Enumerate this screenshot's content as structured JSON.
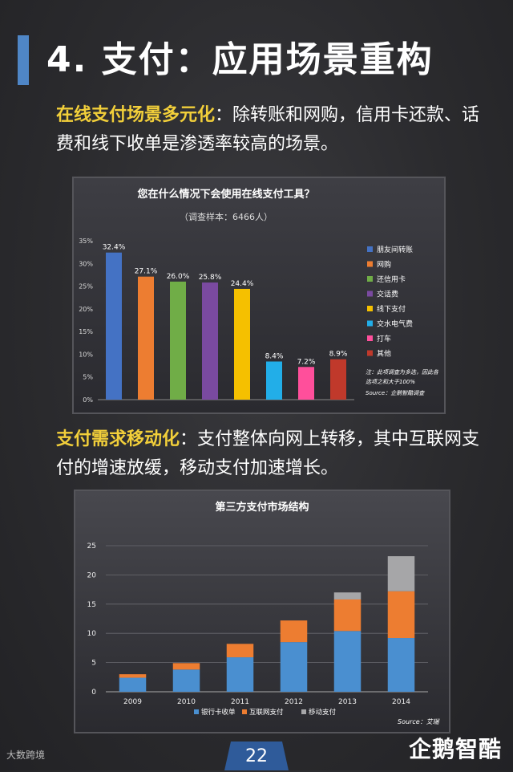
{
  "page": {
    "title": "4. 支付：应用场景重构",
    "para1_highlight": "在线支付场景多元化",
    "para1_text": "：除转账和网购，信用卡还款、话费和线下收单是渗透率较高的场景。",
    "para2_highlight": "支付需求移动化",
    "para2_text": "：支付整体向网上转移，其中互联网支付的增速放缓，移动支付加速增长。",
    "bottom_left": "大数跨境",
    "page_number": "22",
    "brand": "企鹅智酷"
  },
  "chart_data": [
    {
      "type": "bar",
      "title": "您在什么情况下会使用在线支付工具？",
      "subtitle": "（调查样本：6466人）",
      "categories": [
        "朋友间转账",
        "网购",
        "还信用卡",
        "交话费",
        "线下支付",
        "交水电气费",
        "打车",
        "其他"
      ],
      "values": [
        32.4,
        27.1,
        26.0,
        25.8,
        24.4,
        8.4,
        7.2,
        8.9
      ],
      "value_labels": [
        "32.4%",
        "27.1%",
        "26.0%",
        "25.8%",
        "24.4%",
        "8.4%",
        "7.2%",
        "8.9%"
      ],
      "colors": [
        "#4472c4",
        "#ed7d31",
        "#70ad47",
        "#7a4aa0",
        "#f5c000",
        "#22aee8",
        "#ff4f9b",
        "#c0392b"
      ],
      "ylim": [
        0,
        35
      ],
      "yticks": [
        "0%",
        "5%",
        "10%",
        "15%",
        "20%",
        "25%",
        "30%",
        "35%"
      ],
      "legend": "right",
      "note": "注：此项调查为多选，因此各选项之和大于100%",
      "source": "Source：企鹅智酷调查"
    },
    {
      "type": "bar",
      "stacked": true,
      "title": "第三方支付市场结构",
      "categories": [
        "2009",
        "2010",
        "2011",
        "2012",
        "2013",
        "2014"
      ],
      "series": [
        {
          "name": "银行卡收单",
          "values": [
            2.4,
            3.8,
            5.9,
            8.5,
            10.4,
            9.2
          ],
          "color": "#4a8fd0"
        },
        {
          "name": "互联网支付",
          "values": [
            0.6,
            1.1,
            2.3,
            3.7,
            5.4,
            8.0
          ],
          "color": "#ed7d31"
        },
        {
          "name": "移动支付",
          "values": [
            0.0,
            0.0,
            0.0,
            0.0,
            1.2,
            6.0
          ],
          "color": "#a6a6a8"
        }
      ],
      "ylim": [
        0,
        25
      ],
      "yticks": [
        "0",
        "5",
        "10",
        "15",
        "20",
        "25"
      ],
      "grid": true,
      "legend": "bottom",
      "source": "Source：艾瑞"
    }
  ]
}
